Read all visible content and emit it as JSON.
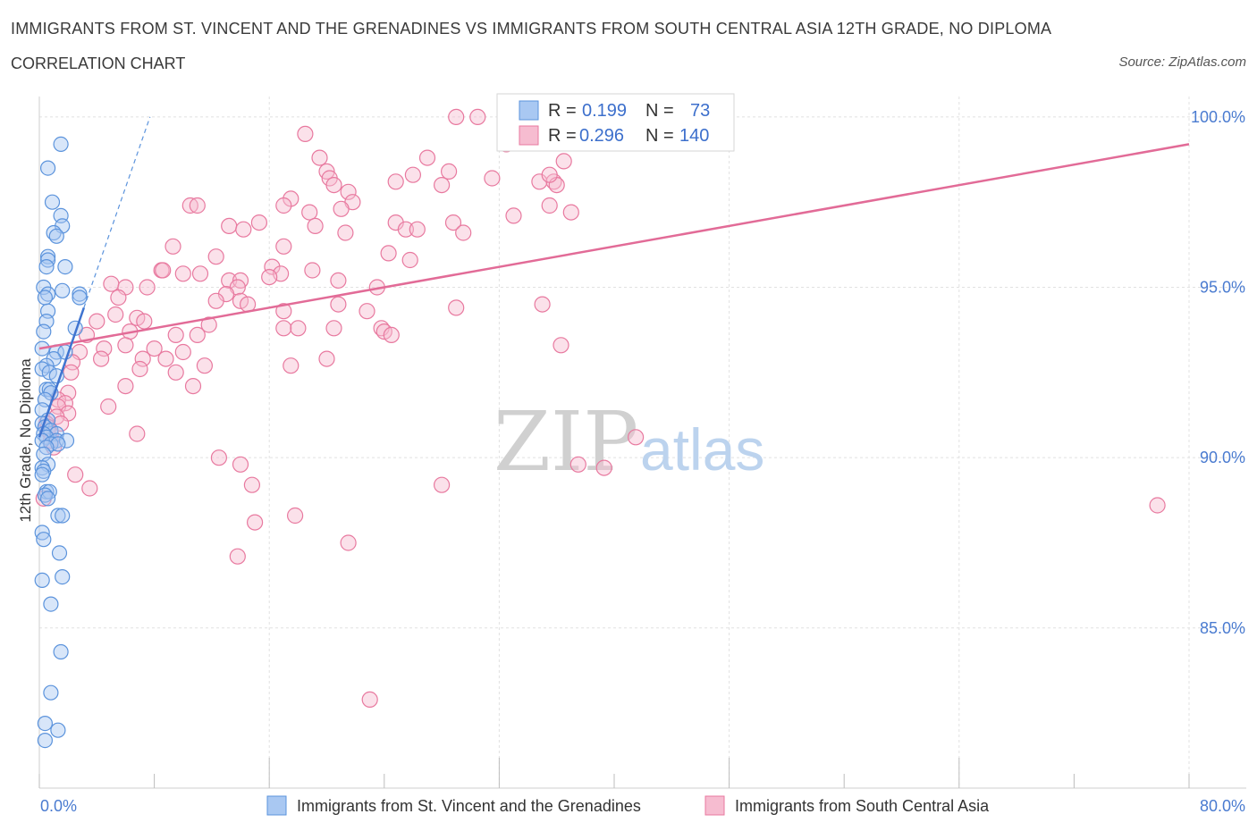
{
  "header": {
    "title": "IMMIGRANTS FROM ST. VINCENT AND THE GRENADINES VS IMMIGRANTS FROM SOUTH CENTRAL ASIA 12TH GRADE, NO DIPLOMA",
    "subtitle": "CORRELATION CHART",
    "source": "Source: ZipAtlas.com"
  },
  "watermark": {
    "zip": "ZIP",
    "atlas": "atlas"
  },
  "legend_box": {
    "rows": [
      {
        "r_label": "R =",
        "r_value": "0.199",
        "n_label": "N =",
        "n_value": "73"
      },
      {
        "r_label": "R =",
        "r_value": "0.296",
        "n_label": "N =",
        "n_value": "140"
      }
    ]
  },
  "colors": {
    "blue_fill": "#a9c8f2",
    "blue_stroke": "#5b93dc",
    "blue_line": "#3f74d0",
    "pink_fill": "#f6bcd0",
    "pink_stroke": "#e8799f",
    "pink_line": "#e26b97",
    "grid": "#e1e1e1",
    "tick_text": "#4a7bd0"
  },
  "chart_data": {
    "type": "scatter",
    "xlabel": "",
    "ylabel": "12th Grade, No Diploma",
    "xlim": [
      0,
      80
    ],
    "ylim": [
      80.3,
      100.6
    ],
    "x_tick_labels": [
      {
        "value": 0,
        "label": "0.0%"
      },
      {
        "value": 80,
        "label": "80.0%"
      }
    ],
    "y_tick_labels": [
      {
        "value": 85,
        "label": "85.0%"
      },
      {
        "value": 90,
        "label": "90.0%"
      },
      {
        "value": 95,
        "label": "95.0%"
      },
      {
        "value": 100,
        "label": "100.0%"
      }
    ],
    "grid": true,
    "legend_position": "bottom",
    "series": [
      {
        "name": "Immigrants from St. Vincent and the Grenadines",
        "color": "blue",
        "R": 0.199,
        "N": 73,
        "trend": {
          "x0": 0.0,
          "y0": 90.6,
          "x1": 3.1,
          "y1": 94.4
        },
        "trend_dashed_ext": {
          "x0": 3.1,
          "y0": 94.4,
          "x1": 7.7,
          "y1": 100.0
        },
        "points": [
          [
            1.5,
            99.2
          ],
          [
            0.6,
            98.5
          ],
          [
            0.9,
            97.5
          ],
          [
            1.5,
            97.1
          ],
          [
            1.6,
            96.8
          ],
          [
            1.0,
            96.6
          ],
          [
            1.2,
            96.5
          ],
          [
            0.6,
            95.9
          ],
          [
            0.6,
            95.8
          ],
          [
            1.8,
            95.6
          ],
          [
            0.5,
            95.6
          ],
          [
            0.3,
            95.0
          ],
          [
            0.6,
            94.8
          ],
          [
            1.6,
            94.9
          ],
          [
            2.8,
            94.8
          ],
          [
            2.8,
            94.7
          ],
          [
            0.4,
            94.7
          ],
          [
            0.6,
            94.3
          ],
          [
            0.5,
            94.0
          ],
          [
            0.3,
            93.7
          ],
          [
            2.5,
            93.8
          ],
          [
            0.2,
            93.2
          ],
          [
            1.2,
            93.1
          ],
          [
            1.8,
            93.1
          ],
          [
            1.0,
            92.9
          ],
          [
            0.5,
            92.7
          ],
          [
            0.2,
            92.6
          ],
          [
            0.7,
            92.5
          ],
          [
            1.2,
            92.4
          ],
          [
            0.5,
            92.0
          ],
          [
            0.7,
            92.0
          ],
          [
            0.8,
            91.9
          ],
          [
            0.4,
            91.7
          ],
          [
            0.2,
            91.4
          ],
          [
            0.6,
            91.1
          ],
          [
            0.2,
            91.0
          ],
          [
            0.4,
            90.9
          ],
          [
            0.8,
            90.8
          ],
          [
            1.2,
            90.7
          ],
          [
            0.3,
            90.7
          ],
          [
            0.5,
            90.6
          ],
          [
            0.2,
            90.5
          ],
          [
            1.2,
            90.5
          ],
          [
            1.9,
            90.5
          ],
          [
            0.8,
            90.4
          ],
          [
            1.3,
            90.4
          ],
          [
            0.5,
            90.3
          ],
          [
            0.3,
            90.1
          ],
          [
            0.6,
            89.8
          ],
          [
            0.2,
            89.7
          ],
          [
            0.3,
            89.6
          ],
          [
            0.2,
            89.5
          ],
          [
            0.5,
            89.0
          ],
          [
            0.7,
            89.0
          ],
          [
            0.4,
            88.9
          ],
          [
            0.6,
            88.8
          ],
          [
            1.3,
            88.3
          ],
          [
            1.6,
            88.3
          ],
          [
            0.2,
            87.8
          ],
          [
            0.3,
            87.6
          ],
          [
            1.4,
            87.2
          ],
          [
            1.6,
            86.5
          ],
          [
            0.2,
            86.4
          ],
          [
            0.8,
            85.7
          ],
          [
            1.5,
            84.3
          ],
          [
            0.8,
            83.1
          ],
          [
            0.4,
            82.2
          ],
          [
            1.3,
            82.0
          ],
          [
            0.4,
            81.7
          ]
        ]
      },
      {
        "name": "Immigrants from South Central Asia",
        "color": "pink",
        "R": 0.296,
        "N": 140,
        "trend": {
          "x0": 0.0,
          "y0": 93.2,
          "x1": 80.0,
          "y1": 99.2
        },
        "points": [
          [
            29.0,
            100.0
          ],
          [
            30.5,
            100.0
          ],
          [
            18.5,
            99.5
          ],
          [
            32.5,
            99.2
          ],
          [
            19.5,
            98.8
          ],
          [
            27.0,
            98.8
          ],
          [
            36.5,
            98.7
          ],
          [
            20.0,
            98.4
          ],
          [
            28.5,
            98.4
          ],
          [
            20.2,
            98.2
          ],
          [
            26.0,
            98.3
          ],
          [
            31.5,
            98.2
          ],
          [
            24.8,
            98.1
          ],
          [
            34.8,
            98.1
          ],
          [
            35.8,
            98.1
          ],
          [
            20.5,
            98.0
          ],
          [
            36.0,
            98.0
          ],
          [
            21.5,
            97.8
          ],
          [
            28.0,
            98.0
          ],
          [
            35.5,
            98.3
          ],
          [
            17.5,
            97.6
          ],
          [
            21.8,
            97.5
          ],
          [
            10.5,
            97.4
          ],
          [
            11.0,
            97.4
          ],
          [
            17.0,
            97.4
          ],
          [
            21.0,
            97.3
          ],
          [
            35.5,
            97.4
          ],
          [
            37.0,
            97.2
          ],
          [
            18.8,
            97.2
          ],
          [
            33.0,
            97.1
          ],
          [
            15.3,
            96.9
          ],
          [
            13.2,
            96.8
          ],
          [
            19.2,
            96.8
          ],
          [
            24.8,
            96.9
          ],
          [
            28.8,
            96.9
          ],
          [
            14.2,
            96.7
          ],
          [
            25.5,
            96.7
          ],
          [
            26.3,
            96.7
          ],
          [
            21.3,
            96.6
          ],
          [
            29.5,
            96.6
          ],
          [
            9.3,
            96.2
          ],
          [
            17.0,
            96.2
          ],
          [
            12.3,
            95.9
          ],
          [
            24.3,
            96.0
          ],
          [
            25.8,
            95.8
          ],
          [
            8.5,
            95.5
          ],
          [
            8.6,
            95.5
          ],
          [
            16.2,
            95.6
          ],
          [
            16.8,
            95.4
          ],
          [
            19.0,
            95.5
          ],
          [
            10.0,
            95.4
          ],
          [
            11.2,
            95.4
          ],
          [
            13.2,
            95.2
          ],
          [
            14.0,
            95.2
          ],
          [
            16.0,
            95.3
          ],
          [
            20.8,
            95.2
          ],
          [
            5.0,
            95.1
          ],
          [
            6.0,
            95.0
          ],
          [
            7.5,
            95.0
          ],
          [
            13.8,
            95.0
          ],
          [
            23.5,
            95.0
          ],
          [
            13.0,
            94.8
          ],
          [
            5.5,
            94.7
          ],
          [
            12.3,
            94.6
          ],
          [
            14.0,
            94.6
          ],
          [
            20.8,
            94.5
          ],
          [
            35.0,
            94.5
          ],
          [
            14.5,
            94.5
          ],
          [
            17.0,
            94.3
          ],
          [
            22.8,
            94.3
          ],
          [
            29.0,
            94.4
          ],
          [
            5.3,
            94.2
          ],
          [
            6.8,
            94.1
          ],
          [
            4.0,
            94.0
          ],
          [
            7.3,
            94.0
          ],
          [
            11.8,
            93.9
          ],
          [
            17.0,
            93.8
          ],
          [
            23.8,
            93.8
          ],
          [
            18.0,
            93.8
          ],
          [
            20.5,
            93.8
          ],
          [
            24.0,
            93.7
          ],
          [
            6.3,
            93.7
          ],
          [
            3.3,
            93.6
          ],
          [
            9.5,
            93.6
          ],
          [
            11.0,
            93.6
          ],
          [
            24.5,
            93.6
          ],
          [
            6.0,
            93.3
          ],
          [
            36.3,
            93.3
          ],
          [
            4.5,
            93.2
          ],
          [
            8.0,
            93.2
          ],
          [
            10.0,
            93.1
          ],
          [
            2.8,
            93.1
          ],
          [
            8.8,
            92.9
          ],
          [
            4.3,
            92.9
          ],
          [
            7.2,
            92.9
          ],
          [
            2.3,
            92.8
          ],
          [
            11.5,
            92.7
          ],
          [
            17.5,
            92.7
          ],
          [
            20.0,
            92.9
          ],
          [
            7.0,
            92.6
          ],
          [
            9.5,
            92.5
          ],
          [
            2.2,
            92.5
          ],
          [
            6.0,
            92.1
          ],
          [
            10.7,
            92.1
          ],
          [
            2.0,
            91.9
          ],
          [
            1.3,
            91.7
          ],
          [
            1.8,
            91.6
          ],
          [
            1.3,
            91.5
          ],
          [
            4.8,
            91.5
          ],
          [
            2.0,
            91.3
          ],
          [
            1.2,
            91.2
          ],
          [
            1.5,
            91.0
          ],
          [
            0.5,
            91.0
          ],
          [
            0.6,
            90.9
          ],
          [
            0.6,
            90.8
          ],
          [
            0.8,
            90.7
          ],
          [
            6.8,
            90.7
          ],
          [
            41.5,
            90.6
          ],
          [
            0.8,
            90.5
          ],
          [
            1.0,
            90.3
          ],
          [
            12.5,
            90.0
          ],
          [
            14.0,
            89.8
          ],
          [
            37.5,
            89.8
          ],
          [
            39.3,
            89.7
          ],
          [
            2.5,
            89.5
          ],
          [
            14.8,
            89.2
          ],
          [
            28.0,
            89.2
          ],
          [
            3.5,
            89.1
          ],
          [
            0.3,
            88.8
          ],
          [
            77.8,
            88.6
          ],
          [
            17.8,
            88.3
          ],
          [
            15.0,
            88.1
          ],
          [
            21.5,
            87.5
          ],
          [
            13.8,
            87.1
          ],
          [
            23.0,
            82.9
          ]
        ]
      }
    ]
  }
}
